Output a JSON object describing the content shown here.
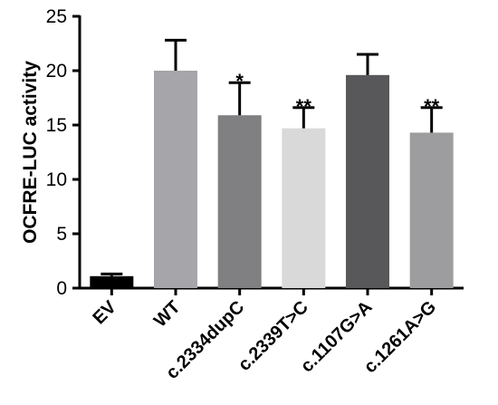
{
  "chart_data": {
    "type": "bar",
    "title": "",
    "xlabel": "",
    "ylabel": "OCFRE-LUC activity",
    "ylim": [
      0,
      25
    ],
    "yticks": [
      0,
      5,
      10,
      15,
      20,
      25
    ],
    "categories": [
      "EV",
      "WT",
      "c.2334dupC",
      "c.2339T>C",
      "c.1107G>A",
      "c.1261A>G"
    ],
    "values": [
      1.1,
      20.0,
      15.9,
      14.7,
      19.6,
      14.3
    ],
    "errors": [
      0.2,
      2.8,
      3.0,
      1.9,
      1.9,
      2.3
    ],
    "significance": [
      "",
      "",
      "*",
      "**",
      "",
      "**"
    ],
    "colors": [
      "#000000",
      "#a6a6aa",
      "#808083",
      "#d9d9d9",
      "#58585a",
      "#9d9da0"
    ],
    "grid": false
  }
}
